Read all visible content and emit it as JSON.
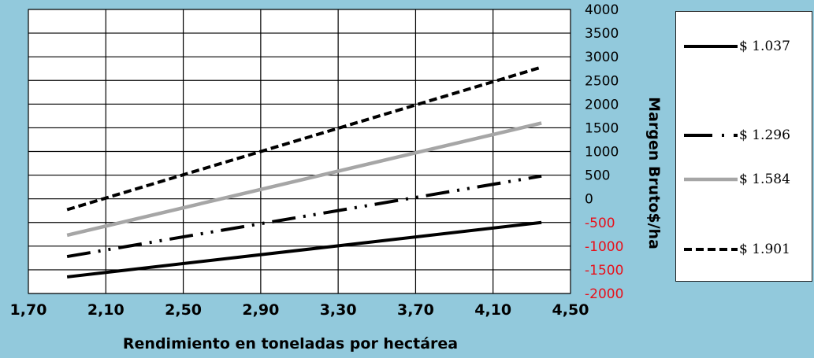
{
  "colors": {
    "background": "#92c9dc",
    "plot_area": "#ffffff",
    "gridline": "#000000",
    "negative_tick": "#e8101a",
    "positive_tick": "#000000"
  },
  "chart_data": {
    "type": "line",
    "xlabel": "Rendimiento en toneladas por hectárea",
    "ylabel": "Margen Bruto$/ha",
    "xlim": [
      1.7,
      4.5
    ],
    "ylim": [
      -2000,
      4000
    ],
    "x_ticks": [
      "1,70",
      "2,10",
      "2,50",
      "2,90",
      "3,30",
      "3,70",
      "4,10",
      "4,50"
    ],
    "x_tick_values": [
      1.7,
      2.1,
      2.5,
      2.9,
      3.3,
      3.7,
      4.1,
      4.5
    ],
    "y_ticks": [
      "4000",
      "3500",
      "3000",
      "2500",
      "2000",
      "1500",
      "1000",
      "500",
      "0",
      "-500",
      "-1000",
      "-1500",
      "-2000"
    ],
    "y_tick_values": [
      4000,
      3500,
      3000,
      2500,
      2000,
      1500,
      1000,
      500,
      0,
      -500,
      -1000,
      -1500,
      -2000
    ],
    "y_axis_side": "right",
    "grid": true,
    "legend_position": "right",
    "series": [
      {
        "name": "$ 1.037",
        "style": "solid",
        "x": [
          1.9,
          4.35
        ],
        "y": [
          -1650,
          -500
        ]
      },
      {
        "name": "$ 1.296",
        "style": "dash-dot-dot",
        "x": [
          1.9,
          4.35
        ],
        "y": [
          -1220,
          480
        ]
      },
      {
        "name": "$ 1.584",
        "style": "gray",
        "x": [
          1.9,
          4.35
        ],
        "y": [
          -770,
          1600
        ]
      },
      {
        "name": "$ 1.901",
        "style": "dashed",
        "x": [
          1.9,
          4.35
        ],
        "y": [
          -230,
          2780
        ]
      }
    ]
  }
}
